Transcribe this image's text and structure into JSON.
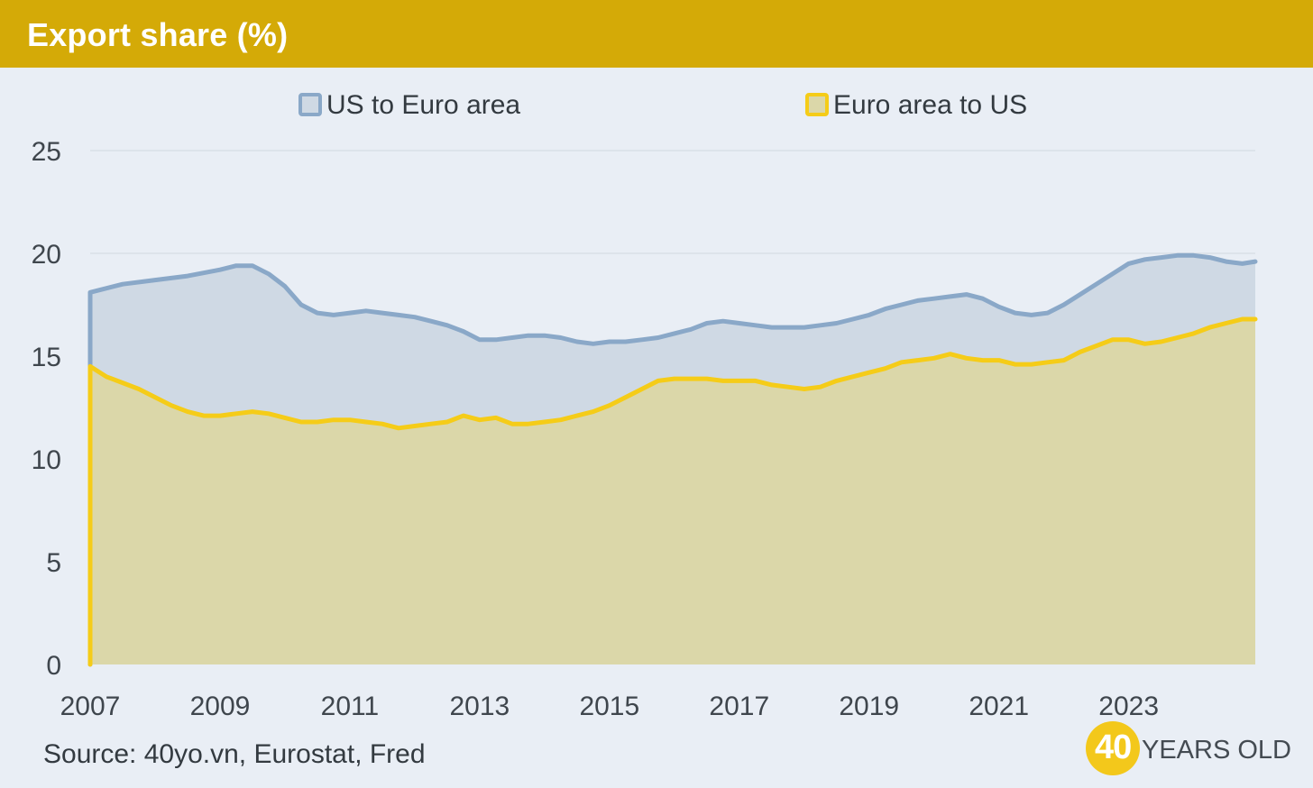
{
  "header": {
    "title": "Export share (%)"
  },
  "source": "Source: 40yo.vn, Eurostat, Fred",
  "brand": {
    "number": "40",
    "text": "YEARS OLD"
  },
  "colors": {
    "header": "#d4aa07",
    "background": "#e9eef5",
    "us_line": "#8aa8c8",
    "us_fill": "#cfd9e4",
    "eu_line": "#f5cc18",
    "eu_fill": "#dbd7a9",
    "grid": "#dde3ea",
    "tick_text": "#3f464d"
  },
  "chart_data": {
    "type": "area",
    "title": "Export share (%)",
    "xlabel": "",
    "ylabel": "",
    "xlim": [
      2007,
      2024.95
    ],
    "ylim": [
      0,
      25
    ],
    "xticks": [
      "2007",
      "2009",
      "2011",
      "2013",
      "2015",
      "2017",
      "2019",
      "2021",
      "2023"
    ],
    "yticks": [
      "0",
      "5",
      "10",
      "15",
      "20",
      "25"
    ],
    "grid": true,
    "legend_position": "top-center",
    "series": [
      {
        "name": "US to Euro area",
        "color": "#8aa8c8",
        "x": [
          2007.0,
          2007.5,
          2008.0,
          2008.5,
          2009.0,
          2009.25,
          2009.5,
          2009.75,
          2010.0,
          2010.25,
          2010.5,
          2010.75,
          2011.0,
          2011.25,
          2011.5,
          2011.75,
          2012.0,
          2012.25,
          2012.5,
          2012.75,
          2013.0,
          2013.25,
          2013.5,
          2013.75,
          2014.0,
          2014.25,
          2014.5,
          2014.75,
          2015.0,
          2015.25,
          2015.5,
          2015.75,
          2016.0,
          2016.25,
          2016.5,
          2016.75,
          2017.0,
          2017.25,
          2017.5,
          2017.75,
          2018.0,
          2018.25,
          2018.5,
          2018.75,
          2019.0,
          2019.25,
          2019.5,
          2019.75,
          2020.0,
          2020.25,
          2020.5,
          2020.75,
          2021.0,
          2021.25,
          2021.5,
          2021.75,
          2022.0,
          2022.25,
          2022.5,
          2022.75,
          2023.0,
          2023.25,
          2023.5,
          2023.75,
          2024.0,
          2024.25,
          2024.5,
          2024.75,
          2024.95
        ],
        "values": [
          18.1,
          18.5,
          18.7,
          18.9,
          19.2,
          19.4,
          19.4,
          19.0,
          18.4,
          17.5,
          17.1,
          17.0,
          17.1,
          17.2,
          17.1,
          17.0,
          16.9,
          16.7,
          16.5,
          16.2,
          15.8,
          15.8,
          15.9,
          16.0,
          16.0,
          15.9,
          15.7,
          15.6,
          15.7,
          15.7,
          15.8,
          15.9,
          16.1,
          16.3,
          16.6,
          16.7,
          16.6,
          16.5,
          16.4,
          16.4,
          16.4,
          16.5,
          16.6,
          16.8,
          17.0,
          17.3,
          17.5,
          17.7,
          17.8,
          17.9,
          18.0,
          17.8,
          17.4,
          17.1,
          17.0,
          17.1,
          17.5,
          18.0,
          18.5,
          19.0,
          19.5,
          19.7,
          19.8,
          19.9,
          19.9,
          19.8,
          19.6,
          19.5,
          19.6
        ]
      },
      {
        "name": "Euro area to US",
        "color": "#f5cc18",
        "x": [
          2007.0,
          2007.25,
          2007.5,
          2007.75,
          2008.0,
          2008.25,
          2008.5,
          2008.75,
          2009.0,
          2009.25,
          2009.5,
          2009.75,
          2010.0,
          2010.25,
          2010.5,
          2010.75,
          2011.0,
          2011.25,
          2011.5,
          2011.75,
          2012.0,
          2012.25,
          2012.5,
          2012.75,
          2013.0,
          2013.25,
          2013.5,
          2013.75,
          2014.0,
          2014.25,
          2014.5,
          2014.75,
          2015.0,
          2015.25,
          2015.5,
          2015.75,
          2016.0,
          2016.25,
          2016.5,
          2016.75,
          2017.0,
          2017.25,
          2017.5,
          2017.75,
          2018.0,
          2018.25,
          2018.5,
          2018.75,
          2019.0,
          2019.25,
          2019.5,
          2019.75,
          2020.0,
          2020.25,
          2020.5,
          2020.75,
          2021.0,
          2021.25,
          2021.5,
          2021.75,
          2022.0,
          2022.25,
          2022.5,
          2022.75,
          2023.0,
          2023.25,
          2023.5,
          2023.75,
          2024.0,
          2024.25,
          2024.5,
          2024.75,
          2024.95
        ],
        "values": [
          14.5,
          14.0,
          13.7,
          13.4,
          13.0,
          12.6,
          12.3,
          12.1,
          12.1,
          12.2,
          12.3,
          12.2,
          12.0,
          11.8,
          11.8,
          11.9,
          11.9,
          11.8,
          11.7,
          11.5,
          11.6,
          11.7,
          11.8,
          12.1,
          11.9,
          12.0,
          11.7,
          11.7,
          11.8,
          11.9,
          12.1,
          12.3,
          12.6,
          13.0,
          13.4,
          13.8,
          13.9,
          13.9,
          13.9,
          13.8,
          13.8,
          13.8,
          13.6,
          13.5,
          13.4,
          13.5,
          13.8,
          14.0,
          14.2,
          14.4,
          14.7,
          14.8,
          14.9,
          15.1,
          14.9,
          14.8,
          14.8,
          14.6,
          14.6,
          14.7,
          14.8,
          15.2,
          15.5,
          15.8,
          15.8,
          15.6,
          15.7,
          15.9,
          16.1,
          16.4,
          16.6,
          16.8,
          16.8
        ]
      }
    ]
  }
}
